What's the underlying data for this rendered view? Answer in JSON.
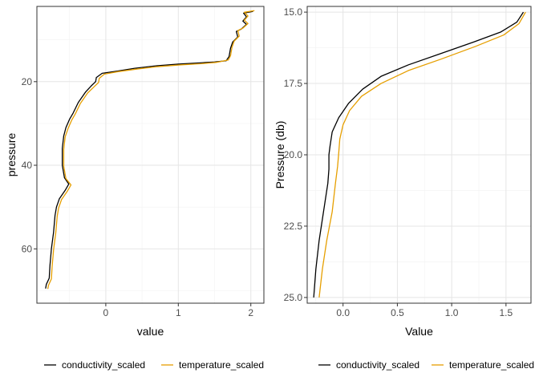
{
  "chart_data": [
    {
      "type": "line",
      "xlabel": "value",
      "ylabel": "pressure",
      "xlim": [
        -0.95,
        2.18
      ],
      "ylim": [
        2,
        73
      ],
      "y_reversed": true,
      "xticks": [
        0,
        1,
        2
      ],
      "xtick_labels": [
        "0",
        "1",
        "2"
      ],
      "yticks": [
        20,
        40,
        60
      ],
      "ytick_labels": [
        "20",
        "40",
        "60"
      ],
      "grid": true,
      "legend_position": "bottom",
      "series": [
        {
          "name": "conductivity_scaled",
          "color": "#000000",
          "points": [
            [
              2.03,
              3.2
            ],
            [
              1.9,
              3.6
            ],
            [
              1.94,
              4.5
            ],
            [
              1.89,
              5.5
            ],
            [
              1.94,
              6.3
            ],
            [
              1.87,
              7.4
            ],
            [
              1.8,
              8.0
            ],
            [
              1.82,
              9.3
            ],
            [
              1.75,
              10.5
            ],
            [
              1.72,
              12.0
            ],
            [
              1.7,
              14.0
            ],
            [
              1.66,
              15.0
            ],
            [
              1.5,
              15.3
            ],
            [
              1.3,
              15.5
            ],
            [
              1.0,
              15.8
            ],
            [
              0.7,
              16.2
            ],
            [
              0.4,
              16.8
            ],
            [
              0.15,
              17.5
            ],
            [
              -0.05,
              18.0
            ],
            [
              -0.13,
              19.0
            ],
            [
              -0.14,
              20.0
            ],
            [
              -0.2,
              21.0
            ],
            [
              -0.28,
              22.5
            ],
            [
              -0.38,
              25.0
            ],
            [
              -0.45,
              27.5
            ],
            [
              -0.5,
              29.0
            ],
            [
              -0.55,
              31.0
            ],
            [
              -0.58,
              33.0
            ],
            [
              -0.6,
              36.0
            ],
            [
              -0.6,
              40.0
            ],
            [
              -0.57,
              43.0
            ],
            [
              -0.51,
              44.5
            ],
            [
              -0.56,
              46.0
            ],
            [
              -0.64,
              48.0
            ],
            [
              -0.68,
              50.0
            ],
            [
              -0.7,
              52.0
            ],
            [
              -0.72,
              56.0
            ],
            [
              -0.75,
              60.0
            ],
            [
              -0.77,
              64.0
            ],
            [
              -0.78,
              67.0
            ],
            [
              -0.82,
              68.5
            ],
            [
              -0.83,
              69.5
            ]
          ]
        },
        {
          "name": "temperature_scaled",
          "color": "#E69F00",
          "points": [
            [
              2.05,
              3.0
            ],
            [
              1.91,
              3.4
            ],
            [
              1.96,
              4.3
            ],
            [
              1.91,
              5.3
            ],
            [
              1.96,
              6.1
            ],
            [
              1.89,
              7.2
            ],
            [
              1.82,
              7.8
            ],
            [
              1.84,
              9.1
            ],
            [
              1.77,
              10.3
            ],
            [
              1.74,
              11.8
            ],
            [
              1.72,
              13.8
            ],
            [
              1.69,
              14.8
            ],
            [
              1.52,
              15.4
            ],
            [
              1.32,
              15.7
            ],
            [
              1.02,
              16.0
            ],
            [
              0.72,
              16.4
            ],
            [
              0.42,
              17.0
            ],
            [
              0.17,
              17.6
            ],
            [
              -0.02,
              18.2
            ],
            [
              -0.09,
              19.2
            ],
            [
              -0.1,
              20.2
            ],
            [
              -0.16,
              21.2
            ],
            [
              -0.25,
              22.7
            ],
            [
              -0.35,
              25.2
            ],
            [
              -0.42,
              27.7
            ],
            [
              -0.47,
              29.2
            ],
            [
              -0.52,
              31.2
            ],
            [
              -0.56,
              33.2
            ],
            [
              -0.58,
              36.2
            ],
            [
              -0.58,
              40.2
            ],
            [
              -0.55,
              43.2
            ],
            [
              -0.48,
              44.7
            ],
            [
              -0.53,
              46.2
            ],
            [
              -0.61,
              48.2
            ],
            [
              -0.65,
              50.2
            ],
            [
              -0.67,
              52.2
            ],
            [
              -0.69,
              56.2
            ],
            [
              -0.72,
              60.2
            ],
            [
              -0.74,
              64.2
            ],
            [
              -0.75,
              67.2
            ],
            [
              -0.79,
              68.7
            ],
            [
              -0.8,
              69.6
            ]
          ]
        }
      ]
    },
    {
      "type": "line",
      "xlabel": "Value",
      "ylabel": "Pressure (db)",
      "xlim": [
        -0.33,
        1.73
      ],
      "ylim": [
        14.8,
        25.2
      ],
      "y_reversed": true,
      "xticks": [
        0,
        0.5,
        1,
        1.5
      ],
      "xtick_labels": [
        "0.0",
        "0.5",
        "1.0",
        "1.5"
      ],
      "yticks": [
        15,
        17.5,
        20,
        22.5,
        25
      ],
      "ytick_labels": [
        "15.0",
        "17.5",
        "20.0",
        "22.5",
        "25.0"
      ],
      "grid": true,
      "legend_position": "bottom",
      "series": [
        {
          "name": "conductivity_scaled",
          "color": "#000000",
          "points": [
            [
              1.66,
              15.0
            ],
            [
              1.6,
              15.35
            ],
            [
              1.45,
              15.7
            ],
            [
              1.2,
              16.05
            ],
            [
              0.9,
              16.45
            ],
            [
              0.6,
              16.85
            ],
            [
              0.35,
              17.25
            ],
            [
              0.18,
              17.7
            ],
            [
              0.05,
              18.2
            ],
            [
              -0.04,
              18.7
            ],
            [
              -0.1,
              19.2
            ],
            [
              -0.12,
              19.7
            ],
            [
              -0.13,
              20.0
            ],
            [
              -0.13,
              20.5
            ],
            [
              -0.14,
              21.0
            ],
            [
              -0.18,
              22.0
            ],
            [
              -0.22,
              23.0
            ],
            [
              -0.25,
              24.0
            ],
            [
              -0.27,
              25.0
            ]
          ]
        },
        {
          "name": "temperature_scaled",
          "color": "#E69F00",
          "points": [
            [
              1.68,
              15.0
            ],
            [
              1.62,
              15.4
            ],
            [
              1.48,
              15.8
            ],
            [
              1.22,
              16.2
            ],
            [
              0.9,
              16.65
            ],
            [
              0.6,
              17.05
            ],
            [
              0.35,
              17.5
            ],
            [
              0.17,
              17.95
            ],
            [
              0.06,
              18.45
            ],
            [
              0.0,
              18.95
            ],
            [
              -0.03,
              19.45
            ],
            [
              -0.04,
              19.95
            ],
            [
              -0.05,
              20.4
            ],
            [
              -0.07,
              21.0
            ],
            [
              -0.1,
              22.0
            ],
            [
              -0.15,
              23.0
            ],
            [
              -0.19,
              24.0
            ],
            [
              -0.22,
              25.0
            ]
          ]
        }
      ]
    }
  ]
}
